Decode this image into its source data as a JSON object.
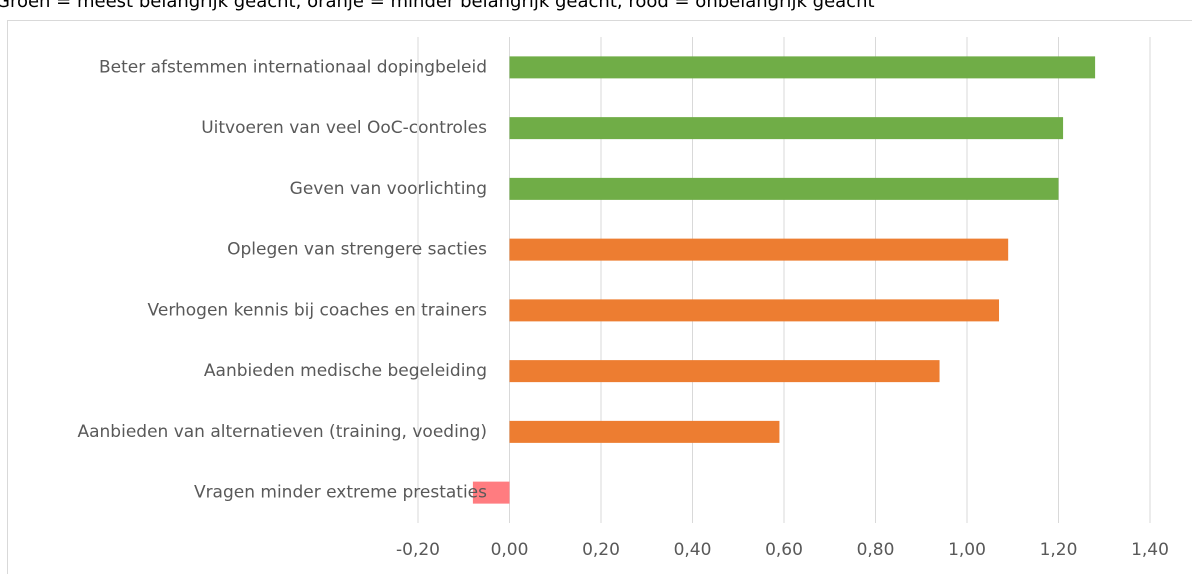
{
  "chart_data": {
    "type": "bar",
    "orientation": "horizontal",
    "subtitle": "Groen = meest belangrijk geacht, oranje = minder belangrijk geacht, rood = onbelangrijk geacht",
    "categories": [
      "Beter afstemmen internationaal dopingbeleid",
      "Uitvoeren van veel OoC-controles",
      "Geven van voorlichting",
      "Oplegen van strengere sacties",
      "Verhogen kennis bij coaches en trainers",
      "Aanbieden medische begeleiding",
      "Aanbieden van alternatieven (training, voeding)",
      "Vragen minder extreme prestaties"
    ],
    "values": [
      1.28,
      1.21,
      1.2,
      1.09,
      1.07,
      0.94,
      0.59,
      -0.08
    ],
    "colors": [
      "#70ad47",
      "#70ad47",
      "#70ad47",
      "#ed7d31",
      "#ed7d31",
      "#ed7d31",
      "#ed7d31",
      "#ff7c80"
    ],
    "xlim": [
      -0.2,
      1.4
    ],
    "xticks": [
      {
        "value": -0.2,
        "label": "-0,20"
      },
      {
        "value": 0,
        "label": "0,00"
      },
      {
        "value": 0.2,
        "label": "0,20"
      },
      {
        "value": 0.4,
        "label": "0,40"
      },
      {
        "value": 0.6,
        "label": "0,60"
      },
      {
        "value": 0.8,
        "label": "0,80"
      },
      {
        "value": 1,
        "label": "1,00"
      },
      {
        "value": 1.2,
        "label": "1,20"
      },
      {
        "value": 1.4,
        "label": "1,40"
      }
    ],
    "grid": true
  }
}
